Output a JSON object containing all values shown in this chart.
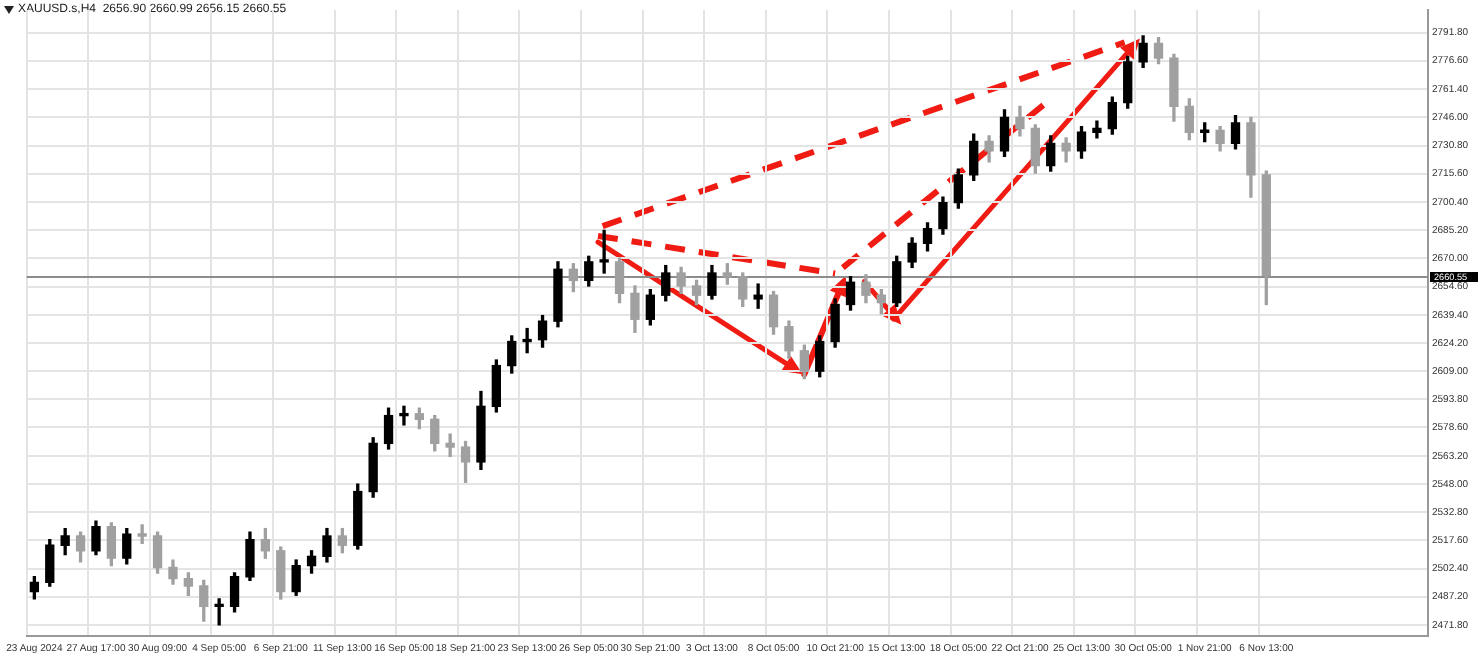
{
  "chart_data": {
    "type": "candlestick",
    "title": "XAUUSD.s,H4  2656.90 2660.99 2656.15 2660.55",
    "categories": [
      "23 Aug 2024",
      null,
      null,
      null,
      "27 Aug 17:00",
      null,
      null,
      null,
      "30 Aug 09:00",
      null,
      null,
      null,
      "4 Sep 05:00",
      null,
      null,
      null,
      "6 Sep 21:00",
      null,
      null,
      null,
      "11 Sep 13:00",
      null,
      null,
      null,
      "16 Sep 05:00",
      null,
      null,
      null,
      "18 Sep 21:00",
      null,
      null,
      null,
      "23 Sep 13:00",
      null,
      null,
      null,
      "26 Sep 05:00",
      null,
      null,
      null,
      "30 Sep 21:00",
      null,
      null,
      null,
      "3 Oct 13:00",
      null,
      null,
      null,
      "8 Oct 05:00",
      null,
      null,
      null,
      "10 Oct 21:00",
      null,
      null,
      null,
      "15 Oct 13:00",
      null,
      null,
      null,
      "18 Oct 05:00",
      null,
      null,
      null,
      "22 Oct 21:00",
      null,
      null,
      null,
      "25 Oct 13:00",
      null,
      null,
      null,
      "30 Oct 05:00",
      null,
      null,
      null,
      "1 Nov 21:00",
      null,
      null,
      null,
      "6 Nov 13:00",
      null,
      null,
      null,
      null,
      null,
      null,
      null,
      null,
      null,
      null
    ],
    "ohlc": [
      [
        2490,
        2498,
        2486,
        2495
      ],
      [
        2495,
        2518,
        2493,
        2515
      ],
      [
        2515,
        2524,
        2510,
        2520
      ],
      [
        2520,
        2522,
        2506,
        2512
      ],
      [
        2512,
        2528,
        2510,
        2525
      ],
      [
        2525,
        2527,
        2504,
        2508
      ],
      [
        2508,
        2524,
        2505,
        2521
      ],
      [
        2521,
        2526,
        2516,
        2520
      ],
      [
        2520,
        2522,
        2500,
        2503
      ],
      [
        2503,
        2507,
        2494,
        2497
      ],
      [
        2497,
        2500,
        2488,
        2493
      ],
      [
        2493,
        2496,
        2474,
        2482
      ],
      [
        2482,
        2486,
        2472,
        2482
      ],
      [
        2482,
        2500,
        2479,
        2498
      ],
      [
        2498,
        2522,
        2496,
        2518
      ],
      [
        2518,
        2524,
        2508,
        2512
      ],
      [
        2512,
        2514,
        2486,
        2490
      ],
      [
        2490,
        2507,
        2488,
        2504
      ],
      [
        2504,
        2512,
        2500,
        2509
      ],
      [
        2509,
        2524,
        2506,
        2520
      ],
      [
        2520,
        2524,
        2511,
        2515
      ],
      [
        2515,
        2548,
        2513,
        2544
      ],
      [
        2544,
        2573,
        2541,
        2570
      ],
      [
        2570,
        2589,
        2567,
        2585
      ],
      [
        2585,
        2590,
        2580,
        2586
      ],
      [
        2586,
        2589,
        2578,
        2583
      ],
      [
        2583,
        2585,
        2566,
        2570
      ],
      [
        2570,
        2575,
        2563,
        2568
      ],
      [
        2568,
        2571,
        2549,
        2560
      ],
      [
        2560,
        2598,
        2556,
        2590
      ],
      [
        2590,
        2615,
        2587,
        2612
      ],
      [
        2612,
        2628,
        2608,
        2625
      ],
      [
        2625,
        2632,
        2619,
        2626
      ],
      [
        2626,
        2639,
        2622,
        2636
      ],
      [
        2636,
        2668,
        2633,
        2664
      ],
      [
        2664,
        2667,
        2652,
        2658
      ],
      [
        2658,
        2671,
        2655,
        2668
      ],
      [
        2668,
        2685,
        2662,
        2668
      ],
      [
        2668,
        2670,
        2646,
        2651
      ],
      [
        2651,
        2655,
        2630,
        2637
      ],
      [
        2637,
        2653,
        2634,
        2650
      ],
      [
        2650,
        2666,
        2647,
        2662
      ],
      [
        2662,
        2665,
        2651,
        2655
      ],
      [
        2655,
        2658,
        2645,
        2650
      ],
      [
        2650,
        2666,
        2648,
        2662
      ],
      [
        2662,
        2667,
        2656,
        2660
      ],
      [
        2660,
        2662,
        2644,
        2648
      ],
      [
        2648,
        2656,
        2643,
        2650
      ],
      [
        2650,
        2652,
        2629,
        2633
      ],
      [
        2633,
        2636,
        2616,
        2620
      ],
      [
        2620,
        2623,
        2605,
        2609
      ],
      [
        2609,
        2628,
        2606,
        2625
      ],
      [
        2625,
        2648,
        2622,
        2645
      ],
      [
        2645,
        2660,
        2642,
        2657
      ],
      [
        2657,
        2661,
        2646,
        2650
      ],
      [
        2650,
        2653,
        2640,
        2646
      ],
      [
        2646,
        2671,
        2644,
        2668
      ],
      [
        2668,
        2681,
        2665,
        2678
      ],
      [
        2678,
        2689,
        2674,
        2686
      ],
      [
        2686,
        2703,
        2683,
        2700
      ],
      [
        2700,
        2718,
        2697,
        2715
      ],
      [
        2715,
        2737,
        2712,
        2733
      ],
      [
        2733,
        2736,
        2722,
        2728
      ],
      [
        2728,
        2750,
        2725,
        2746
      ],
      [
        2746,
        2752,
        2736,
        2740
      ],
      [
        2740,
        2742,
        2716,
        2720
      ],
      [
        2720,
        2736,
        2717,
        2732
      ],
      [
        2732,
        2735,
        2722,
        2728
      ],
      [
        2728,
        2741,
        2724,
        2738
      ],
      [
        2738,
        2744,
        2735,
        2740
      ],
      [
        2740,
        2757,
        2737,
        2754
      ],
      [
        2754,
        2779,
        2751,
        2776
      ],
      [
        2776,
        2790,
        2773,
        2786
      ],
      [
        2786,
        2789,
        2775,
        2778
      ],
      [
        2778,
        2780,
        2744,
        2752
      ],
      [
        2752,
        2756,
        2734,
        2738
      ],
      [
        2738,
        2743,
        2733,
        2739
      ],
      [
        2739,
        2741,
        2728,
        2732
      ],
      [
        2732,
        2747,
        2729,
        2743
      ],
      [
        2743,
        2746,
        2703,
        2715
      ],
      [
        2715,
        2717,
        2645,
        2660.55
      ],
      null,
      null,
      null,
      null,
      null,
      null,
      null,
      null,
      null,
      null
    ],
    "colors": [
      "#000000",
      "#000000",
      "#000000",
      "#a0a0a0",
      "#000000",
      "#a0a0a0",
      "#000000",
      "#a0a0a0",
      "#a0a0a0",
      "#a0a0a0",
      "#a0a0a0",
      "#a0a0a0",
      "#000000",
      "#000000",
      "#000000",
      "#a0a0a0",
      "#a0a0a0",
      "#000000",
      "#000000",
      "#000000",
      "#a0a0a0",
      "#000000",
      "#000000",
      "#000000",
      "#000000",
      "#a0a0a0",
      "#a0a0a0",
      "#a0a0a0",
      "#a0a0a0",
      "#000000",
      "#000000",
      "#000000",
      "#000000",
      "#000000",
      "#000000",
      "#a0a0a0",
      "#000000",
      "#000000",
      "#a0a0a0",
      "#a0a0a0",
      "#000000",
      "#000000",
      "#a0a0a0",
      "#a0a0a0",
      "#000000",
      "#a0a0a0",
      "#a0a0a0",
      "#000000",
      "#a0a0a0",
      "#a0a0a0",
      "#a0a0a0",
      "#000000",
      "#000000",
      "#000000",
      "#a0a0a0",
      "#a0a0a0",
      "#000000",
      "#000000",
      "#000000",
      "#000000",
      "#000000",
      "#000000",
      "#a0a0a0",
      "#000000",
      "#a0a0a0",
      "#a0a0a0",
      "#000000",
      "#a0a0a0",
      "#000000",
      "#000000",
      "#000000",
      "#000000",
      "#000000",
      "#a0a0a0",
      "#a0a0a0",
      "#a0a0a0",
      "#000000",
      "#a0a0a0",
      "#000000",
      "#a0a0a0",
      "#a0a0a0",
      null,
      null,
      null,
      null,
      null,
      null,
      null,
      null,
      null,
      null
    ],
    "ylim": [
      2466,
      2804
    ],
    "yticks": [
      {
        "value": 2471.8,
        "label": "2471.80"
      },
      {
        "value": 2487.2,
        "label": "2487.20"
      },
      {
        "value": 2502.4,
        "label": "2502.40"
      },
      {
        "value": 2517.6,
        "label": "2517.60"
      },
      {
        "value": 2532.8,
        "label": "2532.80"
      },
      {
        "value": 2548,
        "label": "2548.00"
      },
      {
        "value": 2563.2,
        "label": "2563.20"
      },
      {
        "value": 2578.6,
        "label": "2578.60"
      },
      {
        "value": 2593.8,
        "label": "2593.80"
      },
      {
        "value": 2609,
        "label": "2609.00"
      },
      {
        "value": 2624.2,
        "label": "2624.20"
      },
      {
        "value": 2639.4,
        "label": "2639.40"
      },
      {
        "value": 2654.6,
        "label": "2654.60"
      },
      {
        "value": 2670,
        "label": "2670.00"
      },
      {
        "value": 2685.2,
        "label": "2685.20"
      },
      {
        "value": 2700.4,
        "label": "2700.40"
      },
      {
        "value": 2715.6,
        "label": "2715.60"
      },
      {
        "value": 2730.8,
        "label": "2730.80"
      },
      {
        "value": 2746,
        "label": "2746.00"
      },
      {
        "value": 2761.4,
        "label": "2761.40"
      },
      {
        "value": 2776.6,
        "label": "2776.60"
      },
      {
        "value": 2791.8,
        "label": "2791.80"
      }
    ],
    "grid": true,
    "ref_lines": [
      {
        "axis": "y",
        "value": 2660.55,
        "label": "2660.55",
        "color": "#8c8c8c"
      }
    ]
  }
}
